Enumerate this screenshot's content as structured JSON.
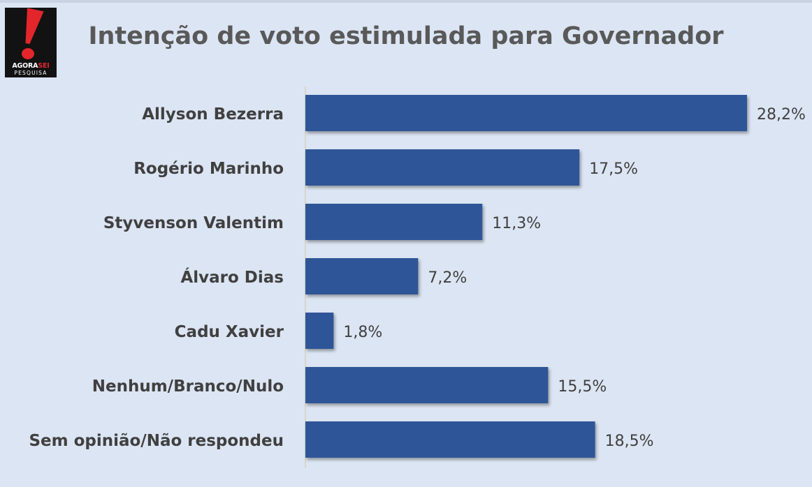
{
  "logo": {
    "brand_part1": "AGORA",
    "brand_part2": "SEI",
    "sub": "PESQUISA"
  },
  "colors": {
    "background": "#dce5f3",
    "bar": "#2e5597",
    "text": "#404040",
    "title": "#595959",
    "logo_red": "#e3262c"
  },
  "chart_data": {
    "type": "bar",
    "orientation": "horizontal",
    "title": "Intenção de voto estimulada para Governador",
    "categories": [
      "Allyson Bezerra",
      "Rogério Marinho",
      "Styvenson Valentim",
      "Álvaro Dias",
      "Cadu Xavier",
      "Nenhum/Branco/Nulo",
      "Sem opinião/Não respondeu"
    ],
    "values": [
      28.2,
      17.5,
      11.3,
      7.2,
      1.8,
      15.5,
      18.5
    ],
    "value_labels": [
      "28,2%",
      "17,5%",
      "11,3%",
      "7,2%",
      "1,8%",
      "15,5%",
      "18,5%"
    ],
    "xlim": [
      0,
      28.2
    ],
    "grid": false,
    "legend": "none"
  }
}
